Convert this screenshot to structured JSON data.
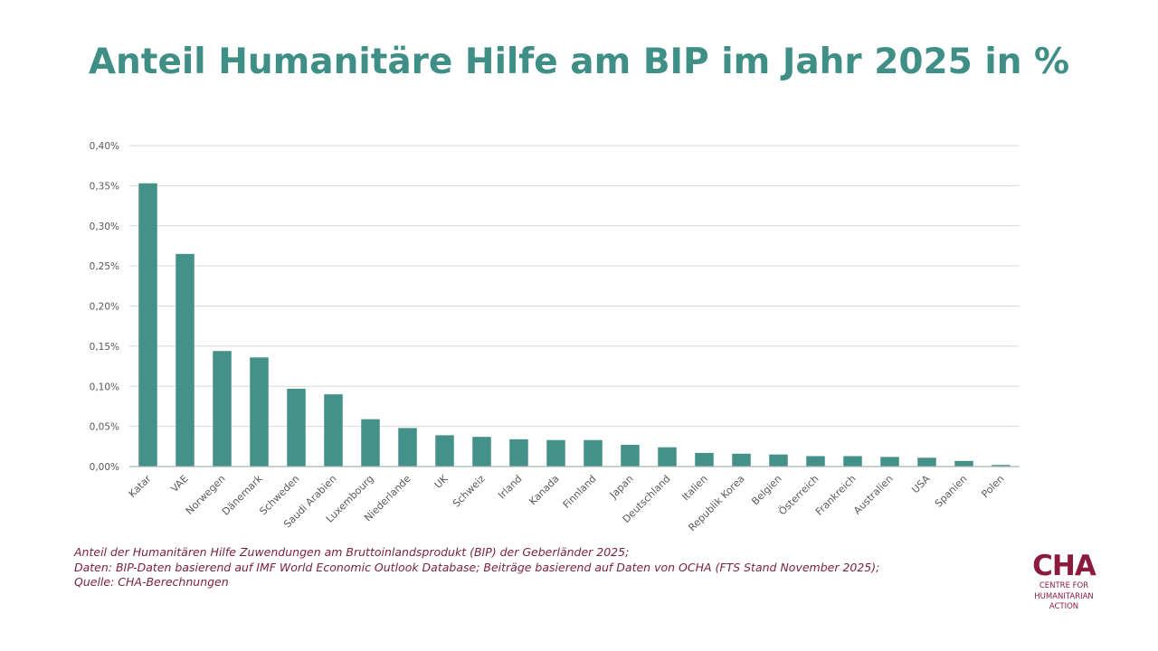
{
  "title": "Anteil Humanitäre Hilfe am BIP im Jahr 2025 in %",
  "colors": {
    "bar": "#44918A",
    "title": "#3F8F86",
    "footnote": "#7A1F3D",
    "logo": "#8B1A3B",
    "grid": "#D9D9D9",
    "axis": "#A6B5B3",
    "tick": "#595959"
  },
  "chart_data": {
    "type": "bar",
    "title": "Anteil Humanitäre Hilfe am BIP im Jahr 2025 in %",
    "xlabel": "",
    "ylabel": "",
    "ylim": [
      0,
      0.4
    ],
    "yticks": [
      0,
      0.05,
      0.1,
      0.15,
      0.2,
      0.25,
      0.3,
      0.35,
      0.4
    ],
    "ytick_labels": [
      "0,00%",
      "0,05%",
      "0,10%",
      "0,15%",
      "0,20%",
      "0,25%",
      "0,30%",
      "0,35%",
      "0,40%"
    ],
    "grid": true,
    "legend": "none",
    "unit": "%",
    "categories": [
      "Katar",
      "VAE",
      "Norwegen",
      "Dänemark",
      "Schweden",
      "Saudi Arabien",
      "Luxembourg",
      "Niederlande",
      "UK",
      "Schweiz",
      "Irland",
      "Kanada",
      "Finnland",
      "Japan",
      "Deutschland",
      "Italien",
      "Republik Korea",
      "Belgien",
      "Österreich",
      "Frankreich",
      "Australien",
      "USA",
      "Spanien",
      "Polen"
    ],
    "values": [
      0.353,
      0.265,
      0.144,
      0.136,
      0.097,
      0.09,
      0.059,
      0.048,
      0.039,
      0.037,
      0.034,
      0.033,
      0.033,
      0.027,
      0.024,
      0.017,
      0.016,
      0.015,
      0.013,
      0.013,
      0.012,
      0.011,
      0.007,
      0.002
    ]
  },
  "footnote": {
    "lines": [
      "Anteil der Humanitären Hilfe Zuwendungen am Bruttoinlandsprodukt (BIP) der Geberländer 2025;",
      "Daten: BIP-Daten basierend auf IMF World Economic Outlook Database; Beiträge basierend auf Daten von OCHA (FTS Stand November 2025);",
      "Quelle: CHA-Berechnungen"
    ]
  },
  "logo": {
    "mark": "CHA",
    "lines": [
      "CENTRE FOR",
      "HUMANITARIAN",
      "ACTION"
    ]
  }
}
